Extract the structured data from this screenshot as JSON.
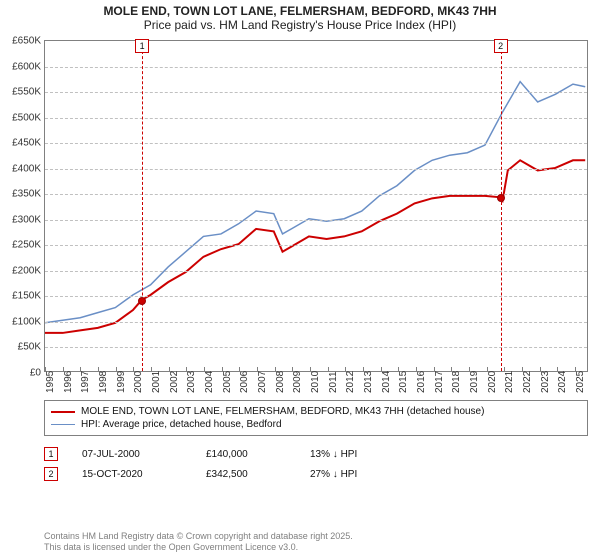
{
  "title": "MOLE END, TOWN LOT LANE, FELMERSHAM, BEDFORD, MK43 7HH",
  "subtitle": "Price paid vs. HM Land Registry's House Price Index (HPI)",
  "chart": {
    "type": "line",
    "background_color": "#ffffff",
    "grid_color": "#c0c0c0",
    "border_color": "#808080",
    "xlim": [
      1995,
      2025.8
    ],
    "ylim": [
      0,
      650000
    ],
    "yticks": [
      0,
      50000,
      100000,
      150000,
      200000,
      250000,
      300000,
      350000,
      400000,
      450000,
      500000,
      550000,
      600000,
      650000
    ],
    "ytick_labels": [
      "£0",
      "£50K",
      "£100K",
      "£150K",
      "£200K",
      "£250K",
      "£300K",
      "£350K",
      "£400K",
      "£450K",
      "£500K",
      "£550K",
      "£600K",
      "£650K"
    ],
    "xticks": [
      1995,
      1996,
      1997,
      1998,
      1999,
      2000,
      2001,
      2002,
      2003,
      2004,
      2005,
      2006,
      2007,
      2008,
      2009,
      2010,
      2011,
      2012,
      2013,
      2014,
      2015,
      2016,
      2017,
      2018,
      2019,
      2020,
      2021,
      2022,
      2023,
      2024,
      2025
    ],
    "series": [
      {
        "id": "price_paid",
        "label": "MOLE END, TOWN LOT LANE, FELMERSHAM, BEDFORD, MK43 7HH (detached house)",
        "color": "#cc0000",
        "line_width": 2,
        "x": [
          1995,
          1996,
          1997,
          1998,
          1999,
          2000,
          2000.5,
          2001,
          2002,
          2003,
          2004,
          2005,
          2006,
          2007,
          2008,
          2008.5,
          2009,
          2010,
          2011,
          2012,
          2013,
          2014,
          2015,
          2016,
          2017,
          2018,
          2019,
          2020,
          2020.8,
          2021,
          2021.3,
          2022,
          2023,
          2024,
          2025,
          2025.7
        ],
        "y": [
          75000,
          75000,
          80000,
          85000,
          95000,
          120000,
          140000,
          150000,
          175000,
          195000,
          225000,
          240000,
          250000,
          280000,
          275000,
          235000,
          245000,
          265000,
          260000,
          265000,
          275000,
          295000,
          310000,
          330000,
          340000,
          345000,
          345000,
          345000,
          342500,
          335000,
          395000,
          415000,
          395000,
          400000,
          415000,
          415000
        ]
      },
      {
        "id": "hpi",
        "label": "HPI: Average price, detached house, Bedford",
        "color": "#6a8fc6",
        "line_width": 1.5,
        "x": [
          1995,
          1996,
          1997,
          1998,
          1999,
          2000,
          2001,
          2002,
          2003,
          2004,
          2005,
          2006,
          2007,
          2008,
          2008.5,
          2009,
          2010,
          2011,
          2012,
          2013,
          2014,
          2015,
          2016,
          2017,
          2018,
          2019,
          2020,
          2021,
          2022,
          2023,
          2024,
          2025,
          2025.7
        ],
        "y": [
          95000,
          100000,
          105000,
          115000,
          125000,
          150000,
          170000,
          205000,
          235000,
          265000,
          270000,
          290000,
          315000,
          310000,
          270000,
          280000,
          300000,
          295000,
          300000,
          315000,
          345000,
          365000,
          395000,
          415000,
          425000,
          430000,
          445000,
          510000,
          570000,
          530000,
          545000,
          565000,
          560000
        ]
      }
    ],
    "markers": [
      {
        "n": "1",
        "x": 2000.5,
        "y": 140000
      },
      {
        "n": "2",
        "x": 2020.8,
        "y": 342500
      }
    ]
  },
  "legend": {
    "items": [
      {
        "color": "#cc0000",
        "width": 2,
        "key": "chart.series.0.label"
      },
      {
        "color": "#6a8fc6",
        "width": 1.5,
        "key": "chart.series.1.label"
      }
    ]
  },
  "sales": [
    {
      "n": "1",
      "date": "07-JUL-2000",
      "price": "£140,000",
      "pct": "13% ↓ HPI"
    },
    {
      "n": "2",
      "date": "15-OCT-2020",
      "price": "£342,500",
      "pct": "27% ↓ HPI"
    }
  ],
  "footer_line1": "Contains HM Land Registry data © Crown copyright and database right 2025.",
  "footer_line2": "This data is licensed under the Open Government Licence v3.0.",
  "label_fontsize": 10,
  "title_fontsize": 12
}
